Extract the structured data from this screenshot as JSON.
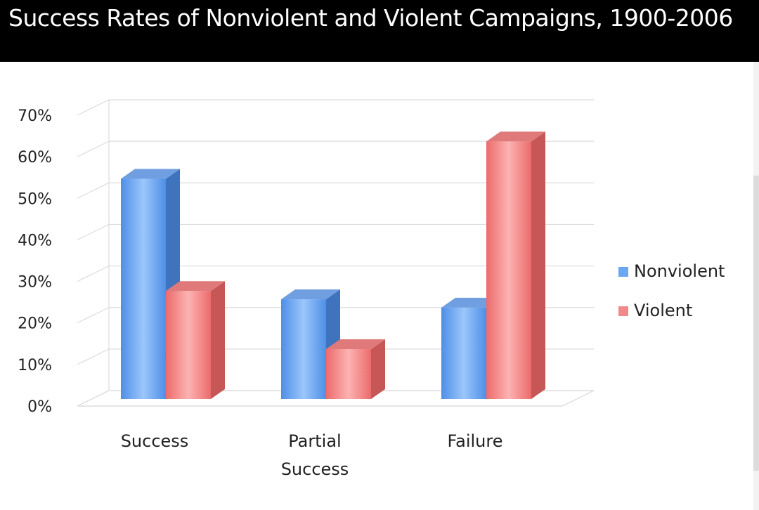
{
  "header": {
    "title": "Success Rates of Nonviolent and Violent Campaigns, 1900-2006"
  },
  "chart_data": {
    "type": "bar",
    "title": "Success Rates of Nonviolent and Violent Campaigns, 1900-2006",
    "categories": [
      "Success",
      "Partial Success",
      "Failure"
    ],
    "category_lines": [
      [
        "Success"
      ],
      [
        "Partial",
        "Success"
      ],
      [
        "Failure"
      ]
    ],
    "series": [
      {
        "name": "Nonviolent",
        "values": [
          53,
          24,
          22
        ],
        "color": "#6aa7f0"
      },
      {
        "name": "Violent",
        "values": [
          26,
          12,
          62
        ],
        "color": "#f08a8a"
      }
    ],
    "yticks": [
      "0%",
      "10%",
      "20%",
      "30%",
      "40%",
      "50%",
      "60%",
      "70%"
    ],
    "ylim": [
      0,
      70
    ],
    "grid": true,
    "legend_position": "right",
    "style": "3d-bar"
  }
}
